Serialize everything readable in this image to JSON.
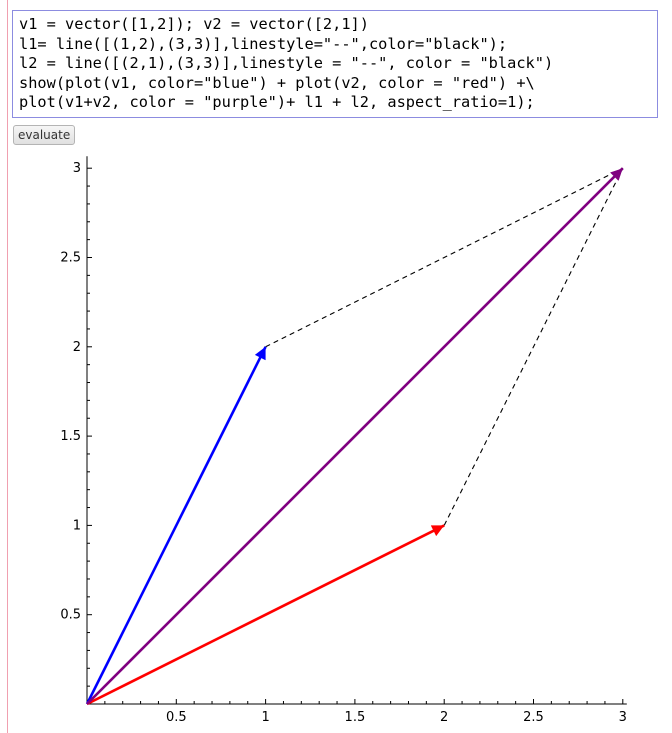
{
  "code_cell": {
    "lines": [
      "v1 = vector([1,2]); v2 = vector([2,1])",
      "l1= line([(1,2),(3,3)],linestyle=\"--\",color=\"black\");",
      "l2 = line([(2,1),(3,3)],linestyle = \"--\", color = \"black\")",
      "show(plot(v1, color=\"blue\") + plot(v2, color = \"red\") +\\",
      "plot(v1+v2, color = \"purple\")+ l1 + l2, aspect_ratio=1);"
    ]
  },
  "evaluate_button": {
    "label": "evaluate"
  },
  "colors": {
    "v1": "#0000ff",
    "v2": "#ff0000",
    "v1_plus_v2": "#800080",
    "dashed": "#000000",
    "cell_border": "#8c8ce0"
  },
  "chart_data": {
    "type": "line",
    "title": "",
    "xlabel": "",
    "ylabel": "",
    "xlim": [
      0,
      3
    ],
    "ylim": [
      0,
      3
    ],
    "grid": false,
    "x_ticks": [
      {
        "value": 0.5,
        "label": "0.5"
      },
      {
        "value": 1,
        "label": "1"
      },
      {
        "value": 1.5,
        "label": "1.5"
      },
      {
        "value": 2,
        "label": "2"
      },
      {
        "value": 2.5,
        "label": "2.5"
      },
      {
        "value": 3,
        "label": "3"
      }
    ],
    "y_ticks": [
      {
        "value": 0.5,
        "label": "0.5"
      },
      {
        "value": 1,
        "label": "1"
      },
      {
        "value": 1.5,
        "label": "1.5"
      },
      {
        "value": 2,
        "label": "2"
      },
      {
        "value": 2.5,
        "label": "2.5"
      },
      {
        "value": 3,
        "label": "3"
      }
    ],
    "vectors": [
      {
        "id": "v1",
        "from": [
          0,
          0
        ],
        "to": [
          1,
          2
        ],
        "color": "#0000ff"
      },
      {
        "id": "v2",
        "from": [
          0,
          0
        ],
        "to": [
          2,
          1
        ],
        "color": "#ff0000"
      },
      {
        "id": "v1-plus-v2",
        "from": [
          0,
          0
        ],
        "to": [
          3,
          3
        ],
        "color": "#800080"
      }
    ],
    "lines": [
      {
        "id": "l1",
        "points": [
          [
            1,
            2
          ],
          [
            3,
            3
          ]
        ],
        "linestyle": "--",
        "color": "#000000"
      },
      {
        "id": "l2",
        "points": [
          [
            2,
            1
          ],
          [
            3,
            3
          ]
        ],
        "linestyle": "--",
        "color": "#000000"
      }
    ]
  }
}
